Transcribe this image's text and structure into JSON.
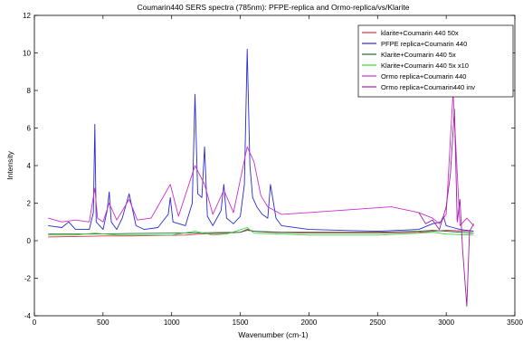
{
  "chart_data": {
    "type": "line",
    "title": "Coumarin440 SERS spectra (785nm): PFPE-replica and Ormo-replica/vs/Klarite",
    "xlabel": "Wavenumber (cm-1)",
    "ylabel": "Intensity",
    "xlim": [
      0,
      3500
    ],
    "ylim": [
      -4,
      12
    ],
    "xticks": [
      "0",
      "500",
      "1000",
      "1500",
      "2000",
      "2500",
      "3000",
      "3500"
    ],
    "yticks": [
      "-4",
      "-2",
      "0",
      "2",
      "4",
      "6",
      "8",
      "10",
      "12"
    ],
    "grid": false,
    "legend_position": "top-right",
    "colors": {
      "klarite_50x": "#d0304a",
      "pfpe": "#2a2ad0",
      "klarite_5x": "#1f6b3c",
      "klarite_5x_x10": "#3ad23a",
      "ormo": "#cc2fcc",
      "ormo_inv": "#a01ea0"
    },
    "series": [
      {
        "name": "klarite+Coumarin 440 50x",
        "color": "#d0304a",
        "x": [
          100,
          300,
          500,
          700,
          900,
          1100,
          1200,
          1400,
          1500,
          1550,
          1600,
          1700,
          2000,
          2500,
          2800,
          3000,
          3200
        ],
        "y": [
          0.2,
          0.22,
          0.25,
          0.25,
          0.28,
          0.3,
          0.35,
          0.4,
          0.45,
          0.55,
          0.5,
          0.45,
          0.4,
          0.4,
          0.45,
          0.55,
          0.5
        ]
      },
      {
        "name": "PFPE replica+Coumarin 440",
        "color": "#2a2ad0",
        "x": [
          100,
          200,
          250,
          300,
          400,
          430,
          440,
          450,
          500,
          530,
          545,
          560,
          600,
          640,
          690,
          740,
          800,
          900,
          975,
          990,
          1010,
          1100,
          1150,
          1170,
          1190,
          1220,
          1240,
          1260,
          1300,
          1360,
          1380,
          1400,
          1450,
          1500,
          1530,
          1550,
          1570,
          1590,
          1620,
          1660,
          1700,
          1720,
          1760,
          1800,
          2000,
          2500,
          2800,
          2900,
          2960,
          2980,
          3000,
          3050,
          3100,
          3200
        ],
        "y": [
          0.8,
          0.7,
          1.0,
          0.6,
          0.6,
          1.5,
          6.2,
          1.0,
          0.6,
          1.6,
          2.6,
          1.0,
          0.6,
          1.2,
          2.5,
          0.8,
          0.6,
          0.7,
          1.4,
          2.3,
          1.0,
          0.8,
          2.0,
          7.8,
          2.5,
          2.3,
          5.0,
          1.3,
          0.8,
          1.6,
          3.0,
          1.2,
          0.9,
          1.3,
          3.0,
          10.2,
          4.0,
          2.3,
          1.8,
          1.4,
          1.2,
          3.0,
          1.2,
          0.8,
          0.6,
          0.5,
          0.6,
          0.9,
          1.0,
          1.3,
          0.8,
          0.7,
          0.6,
          0.5
        ]
      },
      {
        "name": "Klarite+Coumarin 440 5x",
        "color": "#1f6b3c",
        "x": [
          100,
          400,
          700,
          1000,
          1200,
          1500,
          1550,
          1600,
          1800,
          2000,
          2500,
          2800,
          2900,
          3000,
          3100,
          3200
        ],
        "y": [
          0.35,
          0.35,
          0.38,
          0.4,
          0.42,
          0.45,
          0.6,
          0.5,
          0.45,
          0.45,
          0.45,
          0.5,
          0.55,
          0.5,
          0.45,
          0.4
        ]
      },
      {
        "name": "Klarite+Coumarin 440 5x  x10",
        "color": "#3ad23a",
        "x": [
          100,
          300,
          440,
          600,
          800,
          1000,
          1170,
          1300,
          1400,
          1550,
          1600,
          1800,
          2000,
          2500,
          2800,
          2900,
          3000,
          3200
        ],
        "y": [
          0.3,
          0.3,
          0.4,
          0.3,
          0.3,
          0.3,
          0.5,
          0.3,
          0.35,
          0.7,
          0.4,
          0.35,
          0.3,
          0.3,
          0.4,
          0.45,
          0.35,
          0.3
        ]
      },
      {
        "name": "Ormo replica+Coumarin 440",
        "color": "#cc2fcc",
        "x": [
          100,
          200,
          300,
          400,
          440,
          460,
          500,
          545,
          600,
          690,
          750,
          850,
          990,
          1050,
          1170,
          1240,
          1300,
          1380,
          1450,
          1550,
          1600,
          1650,
          1700,
          1800,
          2000,
          2200,
          2400,
          2600,
          2800,
          2900,
          2950,
          3000,
          3050,
          3100,
          3150,
          3200
        ],
        "y": [
          1.2,
          1.0,
          1.1,
          1.0,
          2.8,
          1.2,
          1.0,
          2.0,
          1.1,
          2.2,
          1.1,
          1.2,
          3.0,
          1.3,
          4.0,
          3.0,
          1.4,
          2.7,
          1.5,
          5.0,
          4.2,
          2.4,
          1.8,
          1.4,
          1.5,
          1.6,
          1.7,
          1.8,
          1.5,
          1.2,
          0.9,
          1.4,
          7.9,
          0.8,
          1.2,
          0.8
        ]
      },
      {
        "name": "Ormo replica+Coumarin440 inv",
        "color": "#a01ea0",
        "x": [
          2800,
          2850,
          2900,
          2950,
          3000,
          3030,
          3060,
          3080,
          3100,
          3120,
          3150,
          3170,
          3200
        ],
        "y": [
          1.5,
          0.9,
          1.1,
          0.6,
          1.8,
          3.5,
          7.0,
          1.0,
          2.2,
          -0.5,
          -3.5,
          0.5,
          0.9
        ]
      }
    ]
  }
}
